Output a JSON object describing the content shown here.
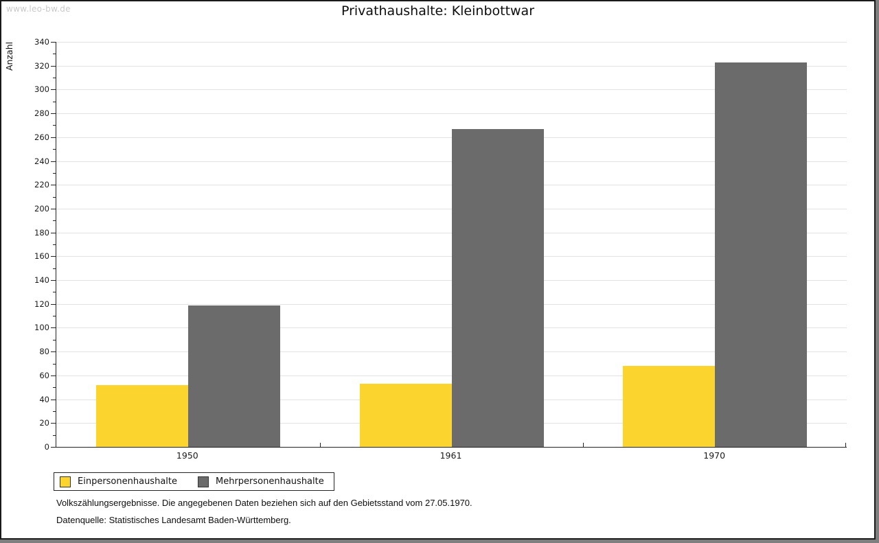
{
  "page": {
    "watermark": "www.leo-bw.de",
    "title": "Privathaushalte: Kleinbottwar",
    "footer_line1": "Volkszählungsergebnisse. Die angegebenen Daten beziehen sich auf den Gebietsstand vom 27.05.1970.",
    "footer_line2": "Datenquelle: Statistisches Landesamt Baden-Württemberg."
  },
  "chart_data": {
    "type": "bar",
    "title": "Privathaushalte: Kleinbottwar",
    "ylabel": "Anzahl",
    "xlabel": "",
    "categories": [
      "1950",
      "1961",
      "1970"
    ],
    "series": [
      {
        "name": "Einpersonenhaushalte",
        "color": "#FCD42E",
        "values": [
          52,
          53,
          68
        ]
      },
      {
        "name": "Mehrpersonenhaushalte",
        "color": "#6B6B6B",
        "values": [
          119,
          267,
          323
        ]
      }
    ],
    "ylim": [
      0,
      340
    ],
    "ytick_step": 20,
    "minor_tick_step": 10,
    "grid": true,
    "gridline_color": "#e2e2e2",
    "legend_position": "bottom-left"
  }
}
